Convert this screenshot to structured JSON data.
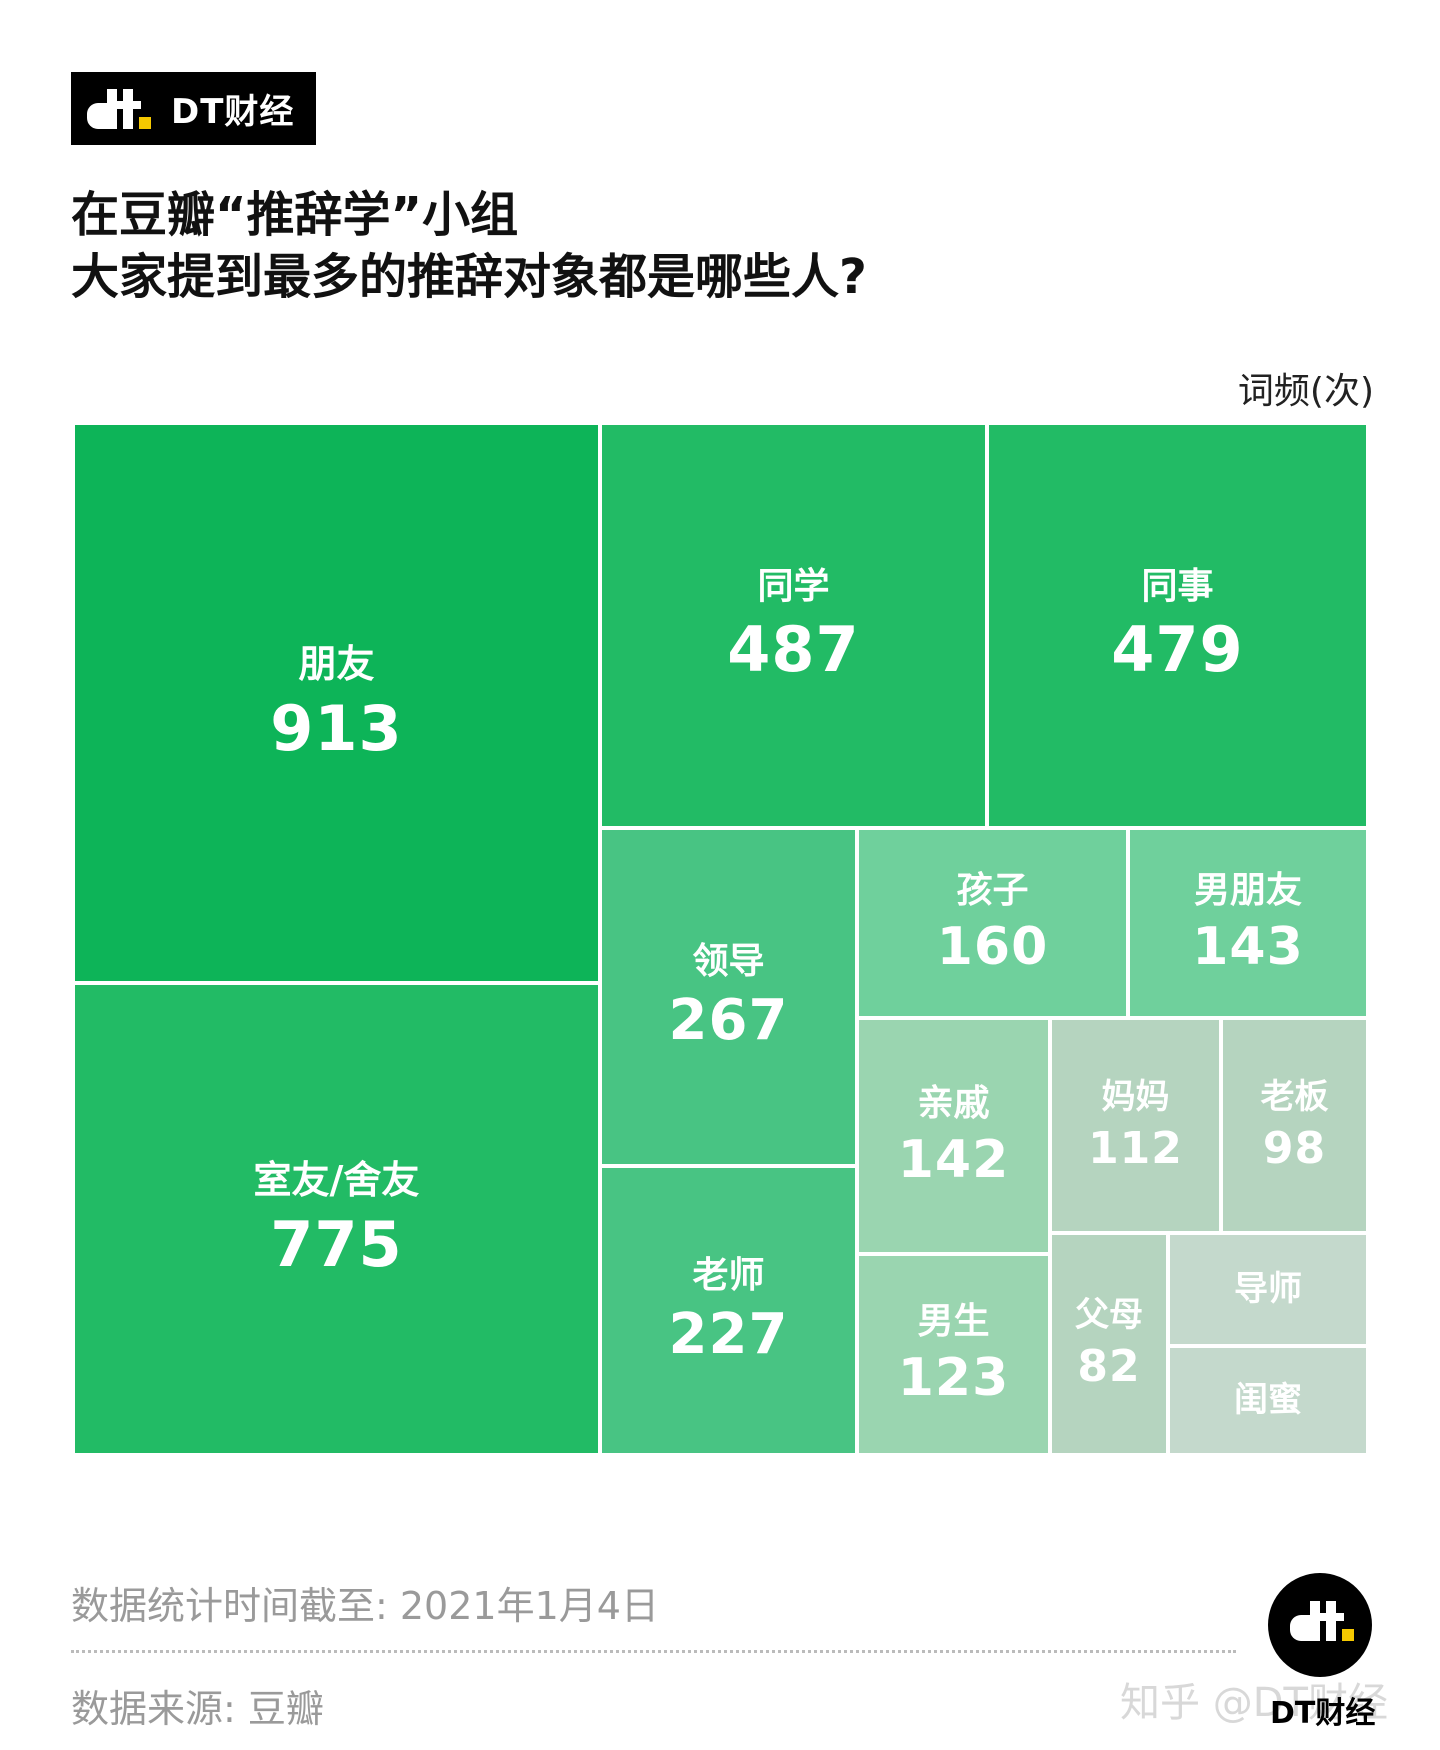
{
  "brand": {
    "logo_icon": "dt-logo-icon",
    "text": "DT财经"
  },
  "title": {
    "line1": "在豆瓣“推辞学”小组",
    "line2": "大家提到最多的推辞对象都是哪些人?"
  },
  "chart_data": {
    "type": "treemap",
    "unit": "词频(次)",
    "items": [
      {
        "label": "朋友",
        "value": 913,
        "value_label": "913"
      },
      {
        "label": "室友/舍友",
        "value": 775,
        "value_label": "775"
      },
      {
        "label": "同学",
        "value": 487,
        "value_label": "487"
      },
      {
        "label": "同事",
        "value": 479,
        "value_label": "479"
      },
      {
        "label": "领导",
        "value": 267,
        "value_label": "267"
      },
      {
        "label": "老师",
        "value": 227,
        "value_label": "227"
      },
      {
        "label": "孩子",
        "value": 160,
        "value_label": "160"
      },
      {
        "label": "男朋友",
        "value": 143,
        "value_label": "143"
      },
      {
        "label": "亲戚",
        "value": 142,
        "value_label": "142"
      },
      {
        "label": "男生",
        "value": 123,
        "value_label": "123"
      },
      {
        "label": "妈妈",
        "value": 112,
        "value_label": "112"
      },
      {
        "label": "老板",
        "value": 98,
        "value_label": "98"
      },
      {
        "label": "父母",
        "value": 82,
        "value_label": "82"
      },
      {
        "label": "导师",
        "value": null,
        "value_label": ""
      },
      {
        "label": "闺蜜",
        "value": null,
        "value_label": ""
      }
    ],
    "colors": {
      "朋友": "#0db458",
      "室友/舍友": "#22bb65",
      "同学": "#22bb65",
      "同事": "#22bb65",
      "领导": "#48c483",
      "老师": "#48c483",
      "孩子": "#6fd09c",
      "男朋友": "#6fd09c",
      "亲戚": "#9ad5b0",
      "男生": "#9ad5b0",
      "妈妈": "#b5d4bf",
      "老板": "#b5d4bf",
      "父母": "#b5d4bf",
      "导师": "#c4d9cc",
      "闺蜜": "#c4d9cc"
    }
  },
  "footer": {
    "stat_date": "数据统计时间截至: 2021年1月4日",
    "source": "数据来源: 豆瓣",
    "watermark": "知乎 @DT财经",
    "logo_text": "DT财经"
  }
}
